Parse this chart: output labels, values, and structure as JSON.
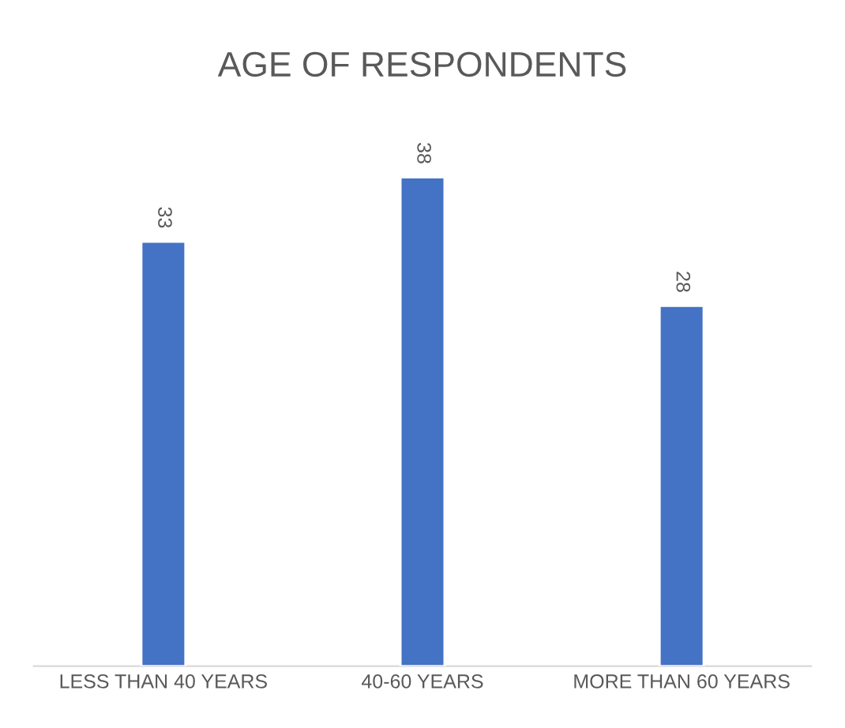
{
  "chart_data": {
    "type": "bar",
    "title": "AGE OF RESPONDENTS",
    "categories": [
      "LESS THAN 40 YEARS",
      "40-60 YEARS",
      "MORE THAN 60 YEARS"
    ],
    "values": [
      33,
      38,
      28
    ],
    "color": "#4472c4",
    "data_labels": true,
    "grid": false
  }
}
